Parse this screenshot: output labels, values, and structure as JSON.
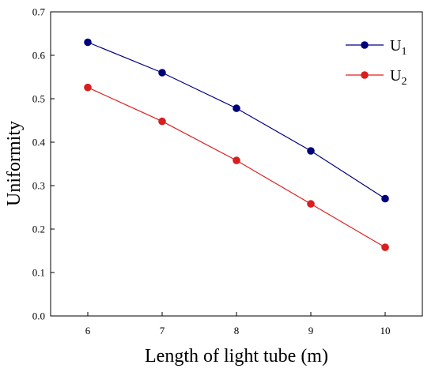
{
  "chart_data": {
    "type": "line",
    "xlabel": "Length of light tube (m)",
    "ylabel": "Uniformity",
    "x": [
      6,
      7,
      8,
      9,
      10
    ],
    "xlim": [
      5.5,
      10.5
    ],
    "ylim": [
      0,
      0.7
    ],
    "xticks": [
      "6",
      "7",
      "8",
      "9",
      "10"
    ],
    "yticks": [
      "0.0",
      "0.1",
      "0.2",
      "0.3",
      "0.4",
      "0.5",
      "0.6",
      "0.7"
    ],
    "grid": false,
    "legend_position": "top-right",
    "series": [
      {
        "name": "U",
        "subscript": "1",
        "color": "#000080",
        "marker_color": "#00007a",
        "values": [
          0.63,
          0.56,
          0.478,
          0.38,
          0.27
        ]
      },
      {
        "name": "U",
        "subscript": "2",
        "color": "#e02020",
        "marker_color": "#d81e1e",
        "values": [
          0.526,
          0.448,
          0.358,
          0.258,
          0.158
        ]
      }
    ]
  }
}
